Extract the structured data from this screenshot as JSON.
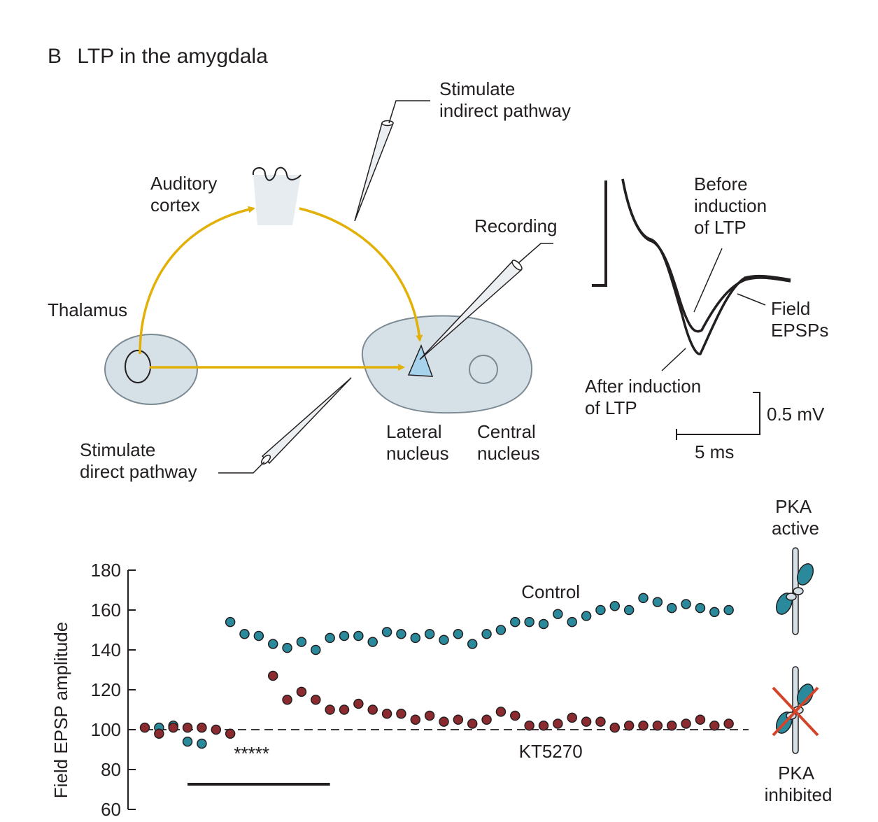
{
  "figure": {
    "panel_letter": "B",
    "panel_title": "LTP in the amygdala"
  },
  "diagram": {
    "stim_indirect": [
      "Stimulate",
      "indirect pathway"
    ],
    "auditory_cortex": [
      "Auditory",
      "cortex"
    ],
    "recording": "Recording",
    "thalamus": "Thalamus",
    "stim_direct": [
      "Stimulate",
      "direct pathway"
    ],
    "lateral_nucleus": [
      "Lateral",
      "nucleus"
    ],
    "central_nucleus": [
      "Central",
      "nucleus"
    ],
    "before_ltp": [
      "Before",
      "induction",
      "of LTP"
    ],
    "field_epsps": [
      "Field",
      "EPSPs"
    ],
    "after_ltp": [
      "After induction",
      "of LTP"
    ],
    "scale_mv": "0.5 mV",
    "scale_ms": "5 ms",
    "pathway_color": "#e2b007",
    "tissue_color": "#d6e0e7",
    "nucleus_color": "#a8d3ec"
  },
  "pka": {
    "active": [
      "PKA",
      "active"
    ],
    "inhibited": [
      "PKA",
      "inhibited"
    ],
    "kinase_color": "#2a8a9c",
    "cross_color": "#d2452a"
  },
  "chart_data": {
    "type": "scatter",
    "ylabel": "Field EPSP amplitude",
    "xlabel": "",
    "yticks": [
      60,
      80,
      100,
      120,
      140,
      160,
      180
    ],
    "ylim": [
      60,
      180
    ],
    "xlim": [
      0,
      42
    ],
    "baseline": 100,
    "stimulation_marker": "*****",
    "stimulation_bar": [
      3,
      13
    ],
    "stimulation_marker_x": 7.5,
    "stimulation_marker_y": 85,
    "series": [
      {
        "name": "Control",
        "color": "#2a8a9c",
        "label_at": [
          28.5,
          166
        ],
        "points": [
          [
            1,
            101
          ],
          [
            2,
            102
          ],
          [
            3,
            94
          ],
          [
            4,
            93
          ],
          [
            6,
            154
          ],
          [
            7,
            148
          ],
          [
            8,
            147
          ],
          [
            9,
            143
          ],
          [
            10,
            141
          ],
          [
            11,
            144
          ],
          [
            12,
            140
          ],
          [
            13,
            146
          ],
          [
            14,
            147
          ],
          [
            15,
            147
          ],
          [
            16,
            144
          ],
          [
            17,
            149
          ],
          [
            18,
            148
          ],
          [
            19,
            146
          ],
          [
            20,
            148
          ],
          [
            21,
            145
          ],
          [
            22,
            148
          ],
          [
            23,
            143
          ],
          [
            24,
            148
          ],
          [
            25,
            150
          ],
          [
            26,
            154
          ],
          [
            27,
            154
          ],
          [
            28,
            153
          ],
          [
            29,
            158
          ],
          [
            30,
            154
          ],
          [
            31,
            157
          ],
          [
            32,
            160
          ],
          [
            33,
            162
          ],
          [
            34,
            160
          ],
          [
            35,
            166
          ],
          [
            36,
            164
          ],
          [
            37,
            161
          ],
          [
            38,
            163
          ],
          [
            39,
            161
          ],
          [
            40,
            159
          ],
          [
            41,
            160
          ]
        ]
      },
      {
        "name": "KT5270",
        "color": "#8b2a2f",
        "label_at": [
          28.5,
          86
        ],
        "points": [
          [
            0,
            101
          ],
          [
            1,
            98
          ],
          [
            2,
            101
          ],
          [
            3,
            101
          ],
          [
            4,
            101
          ],
          [
            5,
            100
          ],
          [
            6,
            98
          ],
          [
            9,
            127
          ],
          [
            10,
            115
          ],
          [
            11,
            119
          ],
          [
            12,
            115
          ],
          [
            13,
            110
          ],
          [
            14,
            110
          ],
          [
            15,
            113
          ],
          [
            16,
            110
          ],
          [
            17,
            108
          ],
          [
            18,
            108
          ],
          [
            19,
            105
          ],
          [
            20,
            107
          ],
          [
            21,
            104
          ],
          [
            22,
            105
          ],
          [
            23,
            103
          ],
          [
            24,
            105
          ],
          [
            25,
            109
          ],
          [
            26,
            107
          ],
          [
            27,
            102
          ],
          [
            28,
            102
          ],
          [
            29,
            103
          ],
          [
            30,
            106
          ],
          [
            31,
            104
          ],
          [
            32,
            104
          ],
          [
            33,
            101
          ],
          [
            34,
            102
          ],
          [
            35,
            102
          ],
          [
            36,
            102
          ],
          [
            37,
            102
          ],
          [
            38,
            103
          ],
          [
            39,
            105
          ],
          [
            40,
            102
          ],
          [
            41,
            103
          ]
        ]
      }
    ]
  }
}
